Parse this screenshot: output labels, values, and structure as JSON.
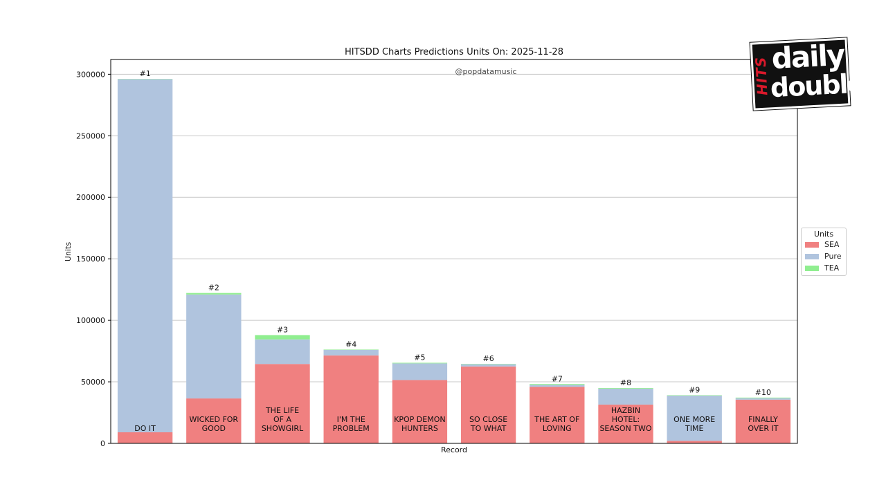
{
  "chart_data": {
    "type": "bar",
    "stacked": true,
    "title": "HITSDD Charts Predictions Units On: 2025-11-28",
    "watermark": "@popdatamusic",
    "xlabel": "Record",
    "ylabel": "Units",
    "ylim": [
      0,
      312000
    ],
    "yticks": [
      0,
      50000,
      100000,
      150000,
      200000,
      250000,
      300000
    ],
    "grid": "horizontal",
    "categories": [
      "DO IT",
      "WICKED FOR GOOD",
      "THE LIFE OF A SHOWGIRL",
      "I'M THE PROBLEM",
      "KPOP DEMON HUNTERS",
      "SO CLOSE TO WHAT",
      "THE ART OF LOVING",
      "HAZBIN HOTEL: SEASON TWO",
      "ONE MORE TIME",
      "FINALLY OVER IT"
    ],
    "category_lines": [
      [
        "DO IT"
      ],
      [
        "WICKED FOR",
        "GOOD"
      ],
      [
        "THE LIFE",
        "OF A",
        "SHOWGIRL"
      ],
      [
        "I'M THE",
        "PROBLEM"
      ],
      [
        "KPOP DEMON",
        "HUNTERS"
      ],
      [
        "SO CLOSE",
        "TO WHAT"
      ],
      [
        "THE ART OF",
        "LOVING"
      ],
      [
        "HAZBIN",
        "HOTEL:",
        "SEASON TWO"
      ],
      [
        "ONE MORE",
        "TIME"
      ],
      [
        "FINALLY",
        "OVER IT"
      ]
    ],
    "ranks": [
      "#1",
      "#2",
      "#3",
      "#4",
      "#5",
      "#6",
      "#7",
      "#8",
      "#9",
      "#10"
    ],
    "series": [
      {
        "name": "SEA",
        "color": "#f08080",
        "values": [
          9000,
          36500,
          64500,
          71500,
          51500,
          62500,
          46000,
          31500,
          2000,
          35500
        ]
      },
      {
        "name": "Pure",
        "color": "#b0c4de",
        "values": [
          287000,
          84500,
          20000,
          4500,
          13500,
          1800,
          1500,
          13000,
          36800,
          1200
        ]
      },
      {
        "name": "TEA",
        "color": "#90ee90",
        "values": [
          200,
          1200,
          3500,
          300,
          500,
          300,
          700,
          500,
          300,
          500
        ]
      }
    ],
    "legend": {
      "title": "Units",
      "position": "right"
    }
  },
  "logo": {
    "side_text": "HITS",
    "word1": "daily",
    "word2": "double"
  }
}
